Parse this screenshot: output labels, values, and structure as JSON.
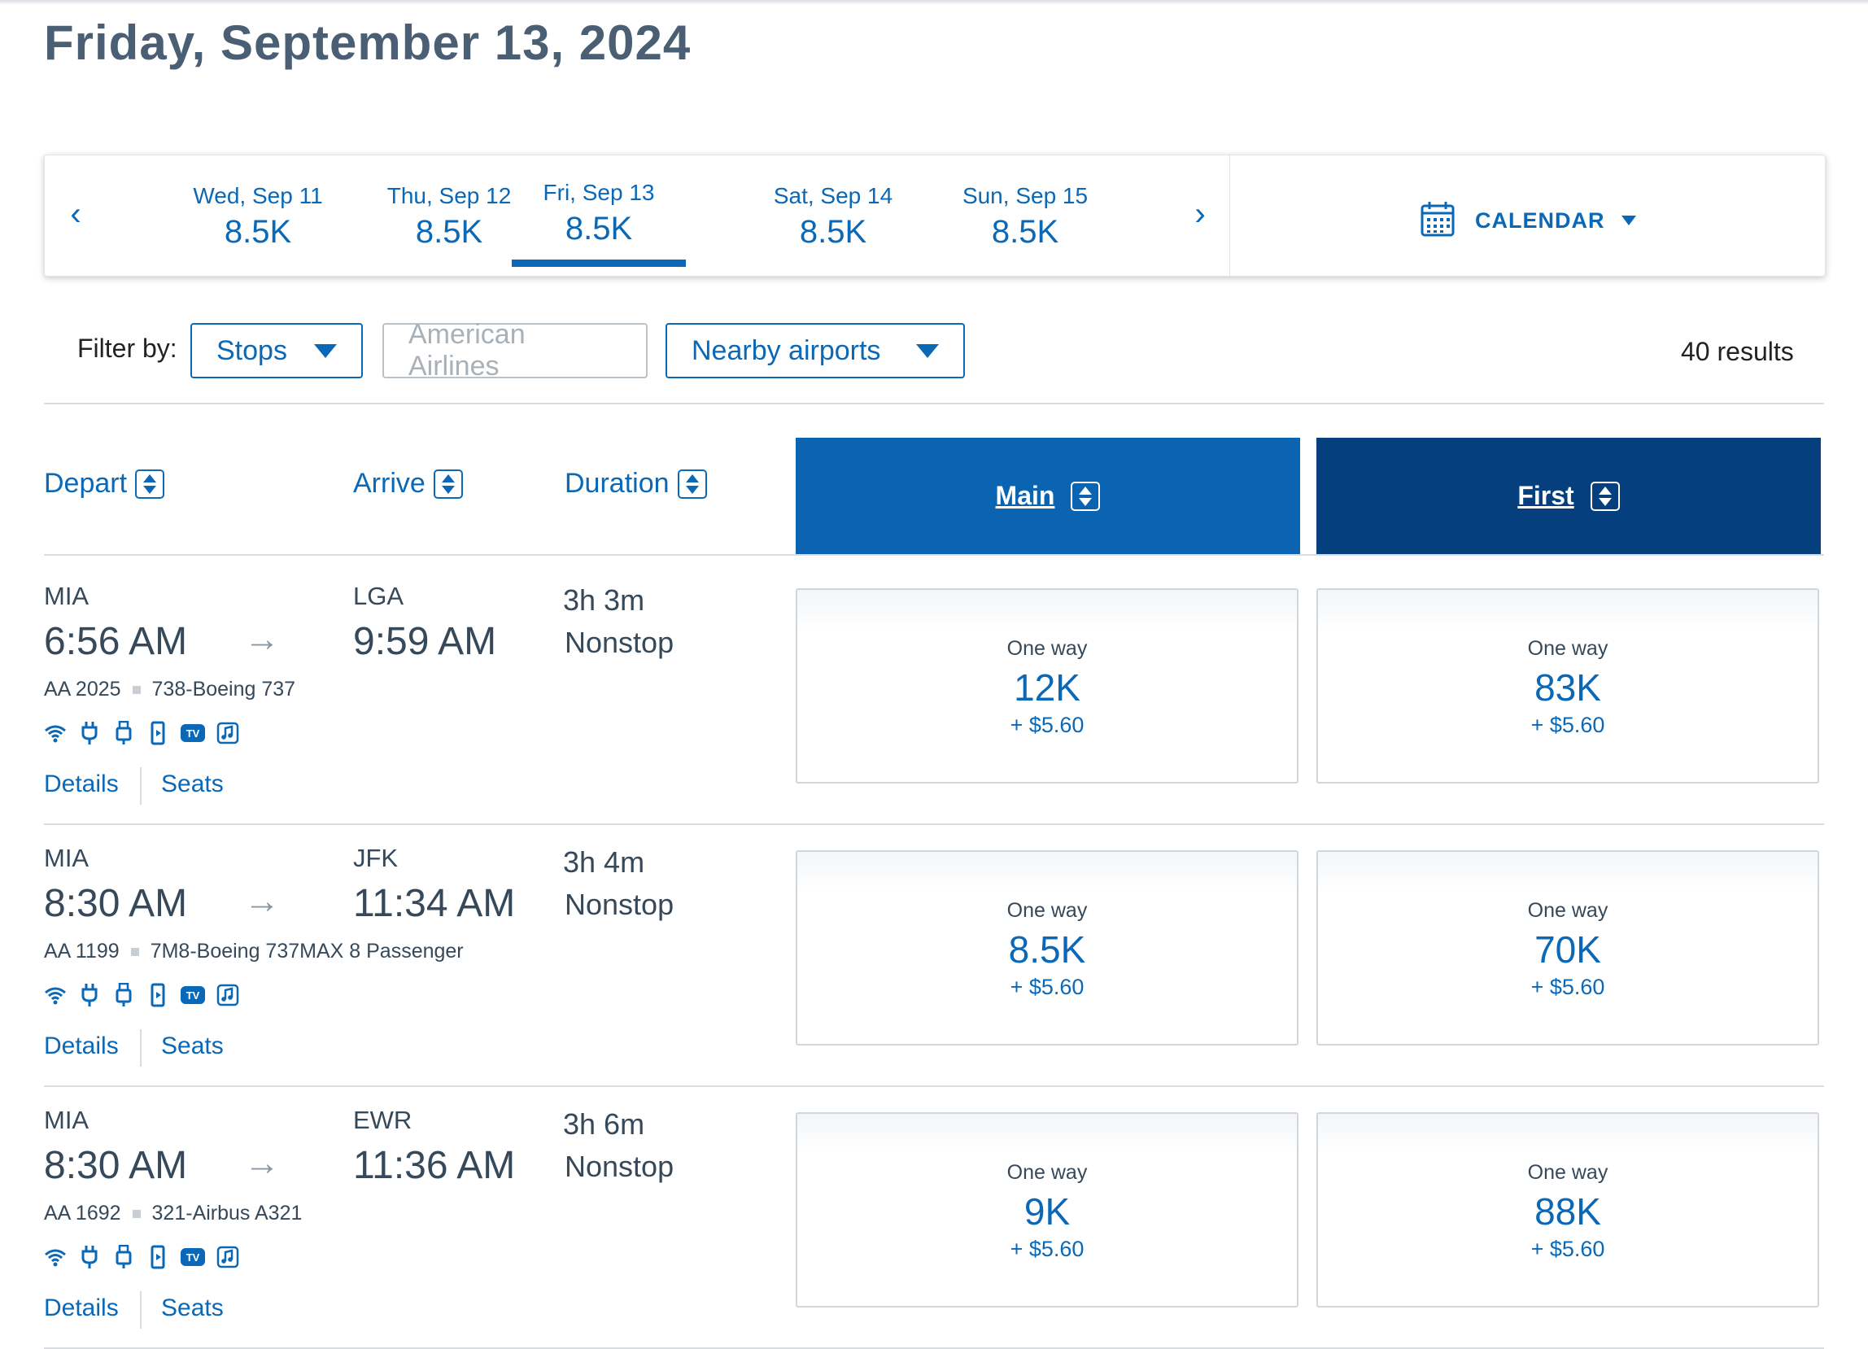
{
  "page": {
    "title": "Friday, September 13, 2024"
  },
  "date_strip": {
    "dates": [
      {
        "label": "Wed, Sep 11",
        "price": "8.5K"
      },
      {
        "label": "Thu, Sep 12",
        "price": "8.5K"
      },
      {
        "label": "Fri, Sep 13",
        "price": "8.5K",
        "selected": true
      },
      {
        "label": "Sat, Sep 14",
        "price": "8.5K"
      },
      {
        "label": "Sun, Sep 15",
        "price": "8.5K"
      }
    ],
    "prev": "‹",
    "next": "›",
    "calendar_label": "CALENDAR"
  },
  "filters": {
    "label": "Filter by:",
    "stops": "Stops",
    "airline": "American Airlines",
    "nearby": "Nearby airports",
    "results": "40 results"
  },
  "columns": {
    "depart": "Depart",
    "arrive": "Arrive",
    "duration": "Duration",
    "main": "Main",
    "first": "First"
  },
  "flights": [
    {
      "from": "MIA",
      "depart_time": "6:56 AM",
      "to": "LGA",
      "arrive_time": "9:59 AM",
      "duration": "3h 3m",
      "stops": "Nonstop",
      "flight": "AA 2025",
      "aircraft": "738-Boeing 737",
      "details": "Details",
      "seats": "Seats",
      "main": {
        "label": "One way",
        "points": "12K",
        "tax": "+ $5.60"
      },
      "first": {
        "label": "One way",
        "points": "83K",
        "tax": "+ $5.60"
      }
    },
    {
      "from": "MIA",
      "depart_time": "8:30 AM",
      "to": "JFK",
      "arrive_time": "11:34 AM",
      "duration": "3h 4m",
      "stops": "Nonstop",
      "flight": "AA 1199",
      "aircraft": "7M8-Boeing 737MAX 8 Passenger",
      "details": "Details",
      "seats": "Seats",
      "main": {
        "label": "One way",
        "points": "8.5K",
        "tax": "+ $5.60"
      },
      "first": {
        "label": "One way",
        "points": "70K",
        "tax": "+ $5.60"
      }
    },
    {
      "from": "MIA",
      "depart_time": "8:30 AM",
      "to": "EWR",
      "arrive_time": "11:36 AM",
      "duration": "3h 6m",
      "stops": "Nonstop",
      "flight": "AA 1692",
      "aircraft": "321-Airbus A321",
      "details": "Details",
      "seats": "Seats",
      "main": {
        "label": "One way",
        "points": "9K",
        "tax": "+ $5.60"
      },
      "first": {
        "label": "One way",
        "points": "88K",
        "tax": "+ $5.60"
      }
    }
  ],
  "amenity_icons": [
    "wifi-icon",
    "power-outlet-icon",
    "usb-icon",
    "device-entertainment-icon",
    "tv-icon",
    "music-icon"
  ],
  "amenity_tv_text": "TV",
  "colors": {
    "accent": "#0a68b7",
    "main_header": "#0a64b2",
    "first_header": "#053f7e",
    "text": "#36495a"
  }
}
